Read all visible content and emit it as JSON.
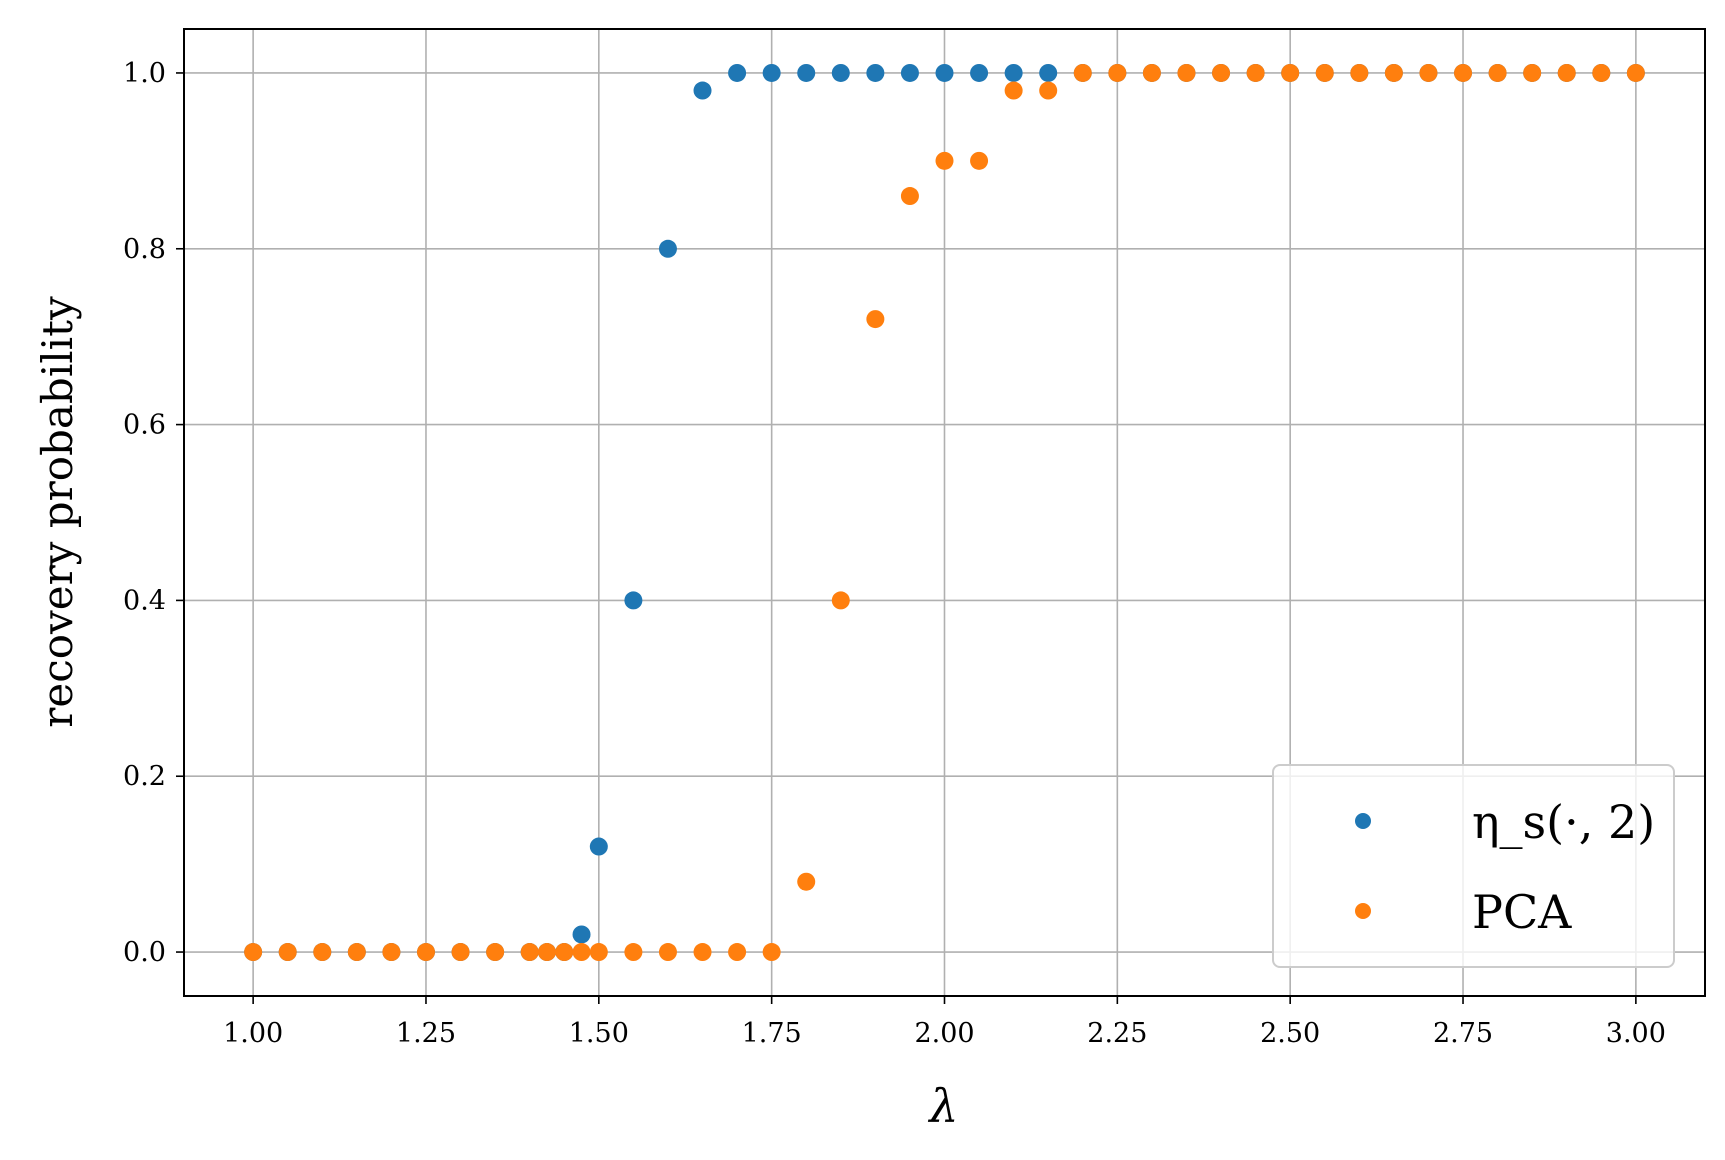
{
  "chart_data": {
    "type": "scatter",
    "xlabel": "λ",
    "ylabel": "recovery probability",
    "xlim": [
      0.9,
      3.1
    ],
    "ylim": [
      -0.05,
      1.05
    ],
    "xticks": [
      "1.00",
      "1.25",
      "1.50",
      "1.75",
      "2.00",
      "2.25",
      "2.50",
      "2.75",
      "3.00"
    ],
    "yticks": [
      "0.0",
      "0.2",
      "0.4",
      "0.6",
      "0.8",
      "1.0"
    ],
    "grid": true,
    "legend_position": "lower-right",
    "series": [
      {
        "name": "η_s(·, 2)",
        "color": "#1f77b4",
        "x": [
          1.0,
          1.05,
          1.1,
          1.15,
          1.2,
          1.25,
          1.3,
          1.35,
          1.4,
          1.425,
          1.45,
          1.475,
          1.5,
          1.55,
          1.6,
          1.65,
          1.7,
          1.75,
          1.8,
          1.85,
          1.9,
          1.95,
          2.0,
          2.05,
          2.1,
          2.15,
          2.2,
          2.25,
          2.3,
          2.35,
          2.4,
          2.45,
          2.5,
          2.55,
          2.6,
          2.65,
          2.7,
          2.75,
          2.8,
          2.85,
          2.9,
          2.95,
          3.0
        ],
        "y": [
          0,
          0,
          0,
          0,
          0,
          0,
          0,
          0,
          0,
          0,
          0,
          0.02,
          0.12,
          0.4,
          0.8,
          0.98,
          1,
          1,
          1,
          1,
          1,
          1,
          1,
          1,
          1,
          1,
          1,
          1,
          1,
          1,
          1,
          1,
          1,
          1,
          1,
          1,
          1,
          1,
          1,
          1,
          1,
          1,
          1
        ]
      },
      {
        "name": "PCA",
        "color": "#ff7f0e",
        "x": [
          1.0,
          1.05,
          1.1,
          1.15,
          1.2,
          1.25,
          1.3,
          1.35,
          1.4,
          1.425,
          1.45,
          1.475,
          1.5,
          1.55,
          1.6,
          1.65,
          1.7,
          1.75,
          1.8,
          1.85,
          1.9,
          1.95,
          2.0,
          2.05,
          2.1,
          2.15,
          2.2,
          2.25,
          2.3,
          2.35,
          2.4,
          2.45,
          2.5,
          2.55,
          2.6,
          2.65,
          2.7,
          2.75,
          2.8,
          2.85,
          2.9,
          2.95,
          3.0
        ],
        "y": [
          0,
          0,
          0,
          0,
          0,
          0,
          0,
          0,
          0,
          0,
          0,
          0,
          0,
          0,
          0,
          0,
          0,
          0,
          0.08,
          0.4,
          0.72,
          0.86,
          0.9,
          0.9,
          0.98,
          0.98,
          1,
          1,
          1,
          1,
          1,
          1,
          1,
          1,
          1,
          1,
          1,
          1,
          1,
          1,
          1,
          1,
          1
        ]
      }
    ]
  }
}
